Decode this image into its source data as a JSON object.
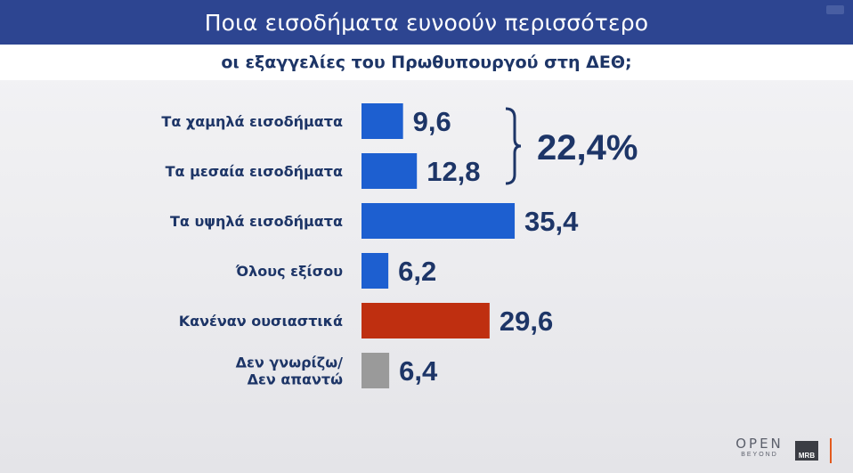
{
  "header": {
    "title": "Ποια εισοδήματα ευνοούν περισσότερο",
    "subtitle": "οι εξαγγελίες του Πρωθυπουργού στη ΔΕΘ;"
  },
  "chart_data": {
    "type": "bar",
    "orientation": "horizontal",
    "title": "Ποια εισοδήματα ευνοούν περισσότερο",
    "subtitle": "οι εξαγγελίες του Πρωθυπουργού στη ΔΕΘ;",
    "categories": [
      "Τα χαμηλά εισοδήματα",
      "Τα μεσαία εισοδήματα",
      "Τα υψηλά εισοδήματα",
      "Όλους εξίσου",
      "Κανέναν ουσιαστικά",
      [
        "Δεν γνωρίζω/",
        "Δεν απαντώ"
      ]
    ],
    "values": [
      9.6,
      12.8,
      35.4,
      6.2,
      29.6,
      6.4
    ],
    "value_labels": [
      "9,6",
      "12,8",
      "35,4",
      "6,2",
      "29,6",
      "6,4"
    ],
    "bar_colors": [
      "#1d5fd0",
      "#1d5fd0",
      "#1d5fd0",
      "#1d5fd0",
      "#bf2f10",
      "#9a9a9a"
    ],
    "xlim": [
      0,
      40
    ],
    "grid": false,
    "legend": "none",
    "annotation": {
      "text": "22,4%",
      "spans": [
        0,
        1
      ],
      "style": "right curly brace"
    }
  },
  "branding": {
    "logo_open": "OPEN",
    "logo_beyond": "BEYOND",
    "logo_mrb": "MRB"
  },
  "colors": {
    "header_bg": "#2d4591",
    "label_text": "#1d3567",
    "bar_blue": "#1d5fd0",
    "bar_red": "#bf2f10",
    "bar_gray": "#9a9a9a"
  }
}
